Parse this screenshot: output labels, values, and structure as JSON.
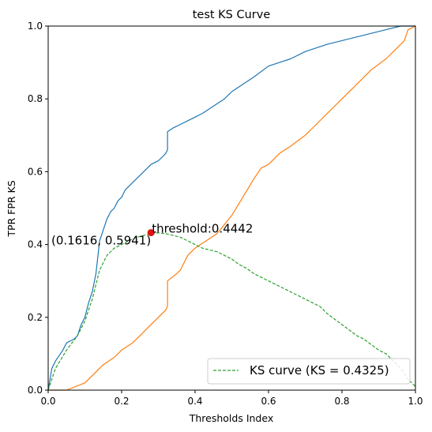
{
  "chart_data": {
    "type": "line",
    "title": "test KS Curve",
    "xlabel": "Thresholds Index",
    "ylabel": "TPR FPR KS",
    "xlim": [
      0,
      1
    ],
    "ylim": [
      0,
      1
    ],
    "xticks": [
      "0.0",
      "0.2",
      "0.4",
      "0.6",
      "0.8",
      "1.0"
    ],
    "yticks": [
      "0.0",
      "0.2",
      "0.4",
      "0.6",
      "0.8",
      "1.0"
    ],
    "grid": false,
    "legend_position": "lower-right",
    "series": [
      {
        "color": "#1f77b4",
        "style": "solid",
        "x": [
          0,
          0.01,
          0.02,
          0.04,
          0.05,
          0.07,
          0.08,
          0.09,
          0.1,
          0.11,
          0.12,
          0.13,
          0.14,
          0.15,
          0.16,
          0.17,
          0.18,
          0.19,
          0.2,
          0.21,
          0.22,
          0.23,
          0.24,
          0.26,
          0.28,
          0.3,
          0.31,
          0.32,
          0.325,
          0.325,
          0.34,
          0.36,
          0.38,
          0.4,
          0.42,
          0.45,
          0.48,
          0.5,
          0.53,
          0.56,
          0.6,
          0.63,
          0.66,
          0.7,
          0.73,
          0.76,
          0.8,
          0.84,
          0.88,
          0.92,
          0.96,
          1.0
        ],
        "y": [
          0,
          0.06,
          0.08,
          0.11,
          0.13,
          0.14,
          0.15,
          0.18,
          0.2,
          0.24,
          0.27,
          0.32,
          0.41,
          0.44,
          0.47,
          0.49,
          0.5,
          0.52,
          0.53,
          0.55,
          0.56,
          0.57,
          0.58,
          0.6,
          0.62,
          0.63,
          0.64,
          0.65,
          0.66,
          0.71,
          0.72,
          0.73,
          0.74,
          0.75,
          0.76,
          0.78,
          0.8,
          0.82,
          0.84,
          0.86,
          0.89,
          0.9,
          0.91,
          0.93,
          0.94,
          0.95,
          0.96,
          0.97,
          0.98,
          0.99,
          1.0,
          1.0
        ]
      },
      {
        "color": "#ff7f0e",
        "style": "solid",
        "x": [
          0,
          0.05,
          0.1,
          0.13,
          0.15,
          0.18,
          0.2,
          0.23,
          0.25,
          0.27,
          0.29,
          0.3,
          0.32,
          0.325,
          0.325,
          0.35,
          0.36,
          0.37,
          0.38,
          0.4,
          0.43,
          0.46,
          0.5,
          0.53,
          0.56,
          0.58,
          0.6,
          0.63,
          0.66,
          0.7,
          0.73,
          0.76,
          0.8,
          0.84,
          0.88,
          0.92,
          0.95,
          0.97,
          0.98,
          1.0
        ],
        "y": [
          0,
          0.0,
          0.02,
          0.05,
          0.07,
          0.09,
          0.11,
          0.13,
          0.15,
          0.17,
          0.19,
          0.2,
          0.22,
          0.23,
          0.3,
          0.32,
          0.33,
          0.35,
          0.37,
          0.39,
          0.41,
          0.43,
          0.48,
          0.53,
          0.58,
          0.61,
          0.62,
          0.65,
          0.67,
          0.7,
          0.73,
          0.76,
          0.8,
          0.84,
          0.88,
          0.91,
          0.94,
          0.96,
          0.99,
          1.0
        ]
      },
      {
        "name": "KS curve (KS = 0.4325)",
        "color": "#2ca02c",
        "style": "dashed",
        "x": [
          0,
          0.02,
          0.05,
          0.08,
          0.1,
          0.12,
          0.14,
          0.16,
          0.18,
          0.2,
          0.22,
          0.24,
          0.26,
          0.28,
          0.3,
          0.32,
          0.34,
          0.36,
          0.38,
          0.4,
          0.42,
          0.44,
          0.46,
          0.48,
          0.5,
          0.52,
          0.54,
          0.56,
          0.58,
          0.6,
          0.62,
          0.64,
          0.66,
          0.68,
          0.7,
          0.72,
          0.74,
          0.76,
          0.78,
          0.8,
          0.82,
          0.84,
          0.86,
          0.88,
          0.9,
          0.92,
          0.94,
          0.96,
          0.98,
          1.0
        ],
        "y": [
          0,
          0.06,
          0.11,
          0.15,
          0.19,
          0.25,
          0.33,
          0.37,
          0.39,
          0.4,
          0.41,
          0.42,
          0.425,
          0.43,
          0.432,
          0.43,
          0.425,
          0.42,
          0.41,
          0.4,
          0.39,
          0.385,
          0.38,
          0.37,
          0.36,
          0.345,
          0.335,
          0.32,
          0.31,
          0.3,
          0.29,
          0.28,
          0.27,
          0.26,
          0.25,
          0.24,
          0.23,
          0.21,
          0.195,
          0.18,
          0.165,
          0.15,
          0.14,
          0.125,
          0.11,
          0.1,
          0.08,
          0.06,
          0.03,
          0.01
        ]
      }
    ],
    "marker": {
      "x": 0.28,
      "y": 0.4325,
      "color": "#e11212",
      "label_coords": "(0.1616, 0.5941)",
      "label_threshold": "threshold:0.4442"
    }
  }
}
